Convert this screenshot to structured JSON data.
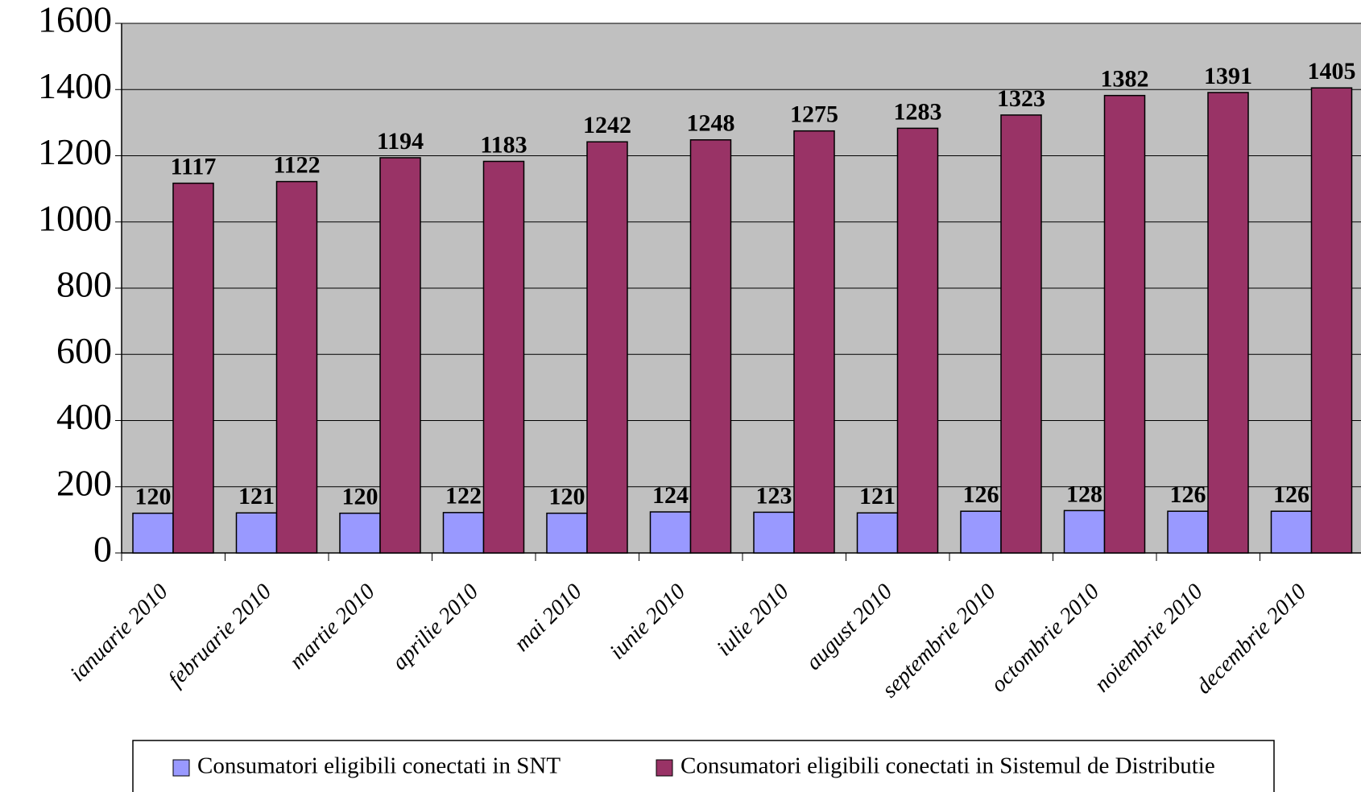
{
  "chart_data": {
    "type": "bar",
    "categories": [
      "ianuarie 2010",
      "februarie 2010",
      "martie 2010",
      "aprilie 2010",
      "mai 2010",
      "iunie 2010",
      "iulie 2010",
      "august 2010",
      "septembrie 2010",
      "octombrie 2010",
      "noiembrie 2010",
      "decembrie 2010"
    ],
    "series": [
      {
        "name": "Consumatori eligibili conectati in SNT",
        "color": "#9999ff",
        "values": [
          120,
          121,
          120,
          122,
          120,
          124,
          123,
          121,
          126,
          128,
          126,
          126
        ]
      },
      {
        "name": "Consumatori eligibili conectati in Sistemul de Distributie",
        "color": "#993366",
        "values": [
          1117,
          1122,
          1194,
          1183,
          1242,
          1248,
          1275,
          1283,
          1323,
          1382,
          1391,
          1405
        ]
      }
    ],
    "ylim": [
      0,
      1600
    ],
    "yticks": [
      0,
      200,
      400,
      600,
      800,
      1000,
      1200,
      1400,
      1600
    ],
    "grid": true,
    "legend": "bottom",
    "background": "#c0c0c0"
  }
}
